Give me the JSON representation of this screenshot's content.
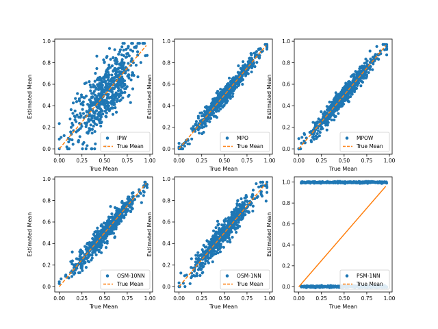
{
  "colors": {
    "points": "#1f77b4",
    "reference": "#ff7f0e"
  },
  "chart_data": [
    {
      "type": "scatter",
      "xlabel": "True Mean",
      "ylabel": "Estimated Mean",
      "legend": [
        "IPW",
        "True Mean"
      ],
      "legend_loc": "lower-right",
      "xticks": [
        "0.00",
        "0.25",
        "0.50",
        "0.75",
        "1.00"
      ],
      "yticks": [
        "0.0",
        "0.2",
        "0.4",
        "0.6",
        "0.8",
        "1.0"
      ],
      "xlim": [
        -0.05,
        1.03
      ],
      "ylim": [
        -0.05,
        1.02
      ],
      "spread": 0.14,
      "cap": 0.98
    },
    {
      "type": "scatter",
      "xlabel": "True Mean",
      "ylabel": "Estimated Mean",
      "legend": [
        "MPO",
        "True Mean"
      ],
      "legend_loc": "lower-right",
      "xticks": [
        "0.00",
        "0.25",
        "0.50",
        "0.75",
        "1.00"
      ],
      "yticks": [
        "0.0",
        "0.2",
        "0.4",
        "0.6",
        "0.8",
        "1.0"
      ],
      "xlim": [
        -0.05,
        1.03
      ],
      "ylim": [
        -0.05,
        1.02
      ],
      "spread": 0.04,
      "cap": 0.97
    },
    {
      "type": "scatter",
      "xlabel": "True Mean",
      "ylabel": "Estimated Mean",
      "legend": [
        "MPOW",
        "True Mean"
      ],
      "legend_loc": "lower-right",
      "xticks": [
        "0.00",
        "0.25",
        "0.50",
        "0.75",
        "1.00"
      ],
      "yticks": [
        "0.0",
        "0.2",
        "0.4",
        "0.6",
        "0.8",
        "1.0"
      ],
      "xlim": [
        -0.05,
        1.03
      ],
      "ylim": [
        -0.05,
        1.02
      ],
      "spread": 0.045,
      "cap": 0.97
    },
    {
      "type": "scatter",
      "xlabel": "True Mean",
      "ylabel": "Estimated Mean",
      "legend": [
        "OSM-10NN",
        "True Mean"
      ],
      "legend_loc": "lower-right",
      "xticks": [
        "0.00",
        "0.25",
        "0.50",
        "0.75",
        "1.00"
      ],
      "yticks": [
        "0.0",
        "0.2",
        "0.4",
        "0.6",
        "0.8",
        "1.0"
      ],
      "xlim": [
        -0.05,
        1.03
      ],
      "ylim": [
        -0.05,
        1.02
      ],
      "spread": 0.05,
      "cap": 0.97
    },
    {
      "type": "scatter",
      "xlabel": "True Mean",
      "ylabel": "Estimated Mean",
      "legend": [
        "OSM-1NN",
        "True Mean"
      ],
      "legend_loc": "lower-right",
      "xticks": [
        "0.00",
        "0.25",
        "0.50",
        "0.75",
        "1.00"
      ],
      "yticks": [
        "0.0",
        "0.2",
        "0.4",
        "0.6",
        "0.8",
        "1.0"
      ],
      "xlim": [
        -0.05,
        1.03
      ],
      "ylim": [
        -0.05,
        1.02
      ],
      "spread": 0.055,
      "cap": 0.97
    },
    {
      "type": "scatter",
      "xlabel": "True Mean",
      "ylabel": "Estimated Mean",
      "legend": [
        "PSM-1NN",
        "True Mean"
      ],
      "legend_loc": "lower-right",
      "xticks": [
        "0.00",
        "0.25",
        "0.50",
        "0.75",
        "1.00"
      ],
      "yticks": [
        "0.0",
        "0.2",
        "0.4",
        "0.6",
        "0.8",
        "1.0"
      ],
      "xlim": [
        -0.05,
        1.03
      ],
      "ylim": [
        -0.05,
        1.05
      ],
      "binary": true
    }
  ]
}
